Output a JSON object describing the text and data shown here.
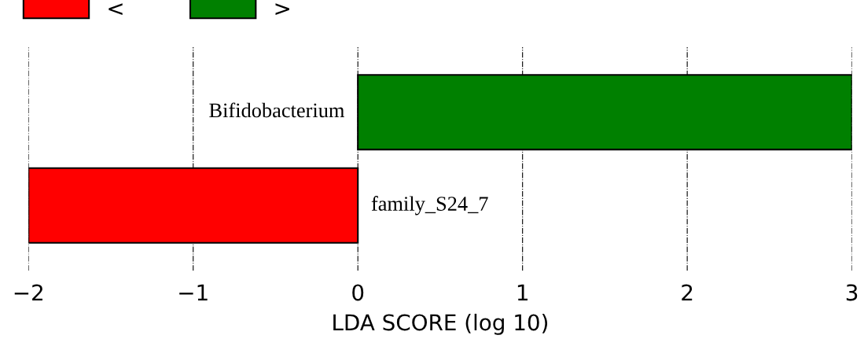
{
  "chart_data": {
    "type": "bar",
    "orientation": "horizontal",
    "xlabel": "LDA SCORE (log 10)",
    "categories": [
      "Bifidobacterium",
      "family_S24_7"
    ],
    "series": [
      {
        "name": "<",
        "color": "#ff0000",
        "values": [
          null,
          -2.0
        ]
      },
      {
        "name": ">",
        "color": "#008000",
        "values": [
          3.0,
          null
        ]
      }
    ],
    "xlim": [
      -2,
      3
    ],
    "xticks": [
      {
        "value": -2,
        "label": "−2"
      },
      {
        "value": -1,
        "label": "−1"
      },
      0,
      1,
      2,
      3
    ],
    "grid": "x",
    "legend": "top left"
  }
}
